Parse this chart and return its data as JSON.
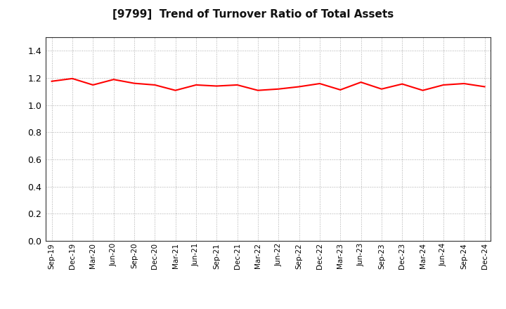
{
  "title": "[9799]  Trend of Turnover Ratio of Total Assets",
  "line_color": "#FF0000",
  "line_width": 1.5,
  "background_color": "#FFFFFF",
  "grid_color": "#aaaaaa",
  "ylim": [
    0.0,
    1.5
  ],
  "yticks": [
    0.0,
    0.2,
    0.4,
    0.6,
    0.8,
    1.0,
    1.2,
    1.4
  ],
  "x_labels": [
    "Sep-19",
    "Dec-19",
    "Mar-20",
    "Jun-20",
    "Sep-20",
    "Dec-20",
    "Mar-21",
    "Jun-21",
    "Sep-21",
    "Dec-21",
    "Mar-22",
    "Jun-22",
    "Sep-22",
    "Dec-22",
    "Mar-23",
    "Jun-23",
    "Sep-23",
    "Dec-23",
    "Mar-24",
    "Jun-24",
    "Sep-24",
    "Dec-24"
  ],
  "values": [
    1.175,
    1.195,
    1.148,
    1.188,
    1.16,
    1.148,
    1.108,
    1.148,
    1.14,
    1.148,
    1.108,
    1.118,
    1.135,
    1.158,
    1.112,
    1.168,
    1.118,
    1.155,
    1.108,
    1.148,
    1.158,
    1.135
  ]
}
